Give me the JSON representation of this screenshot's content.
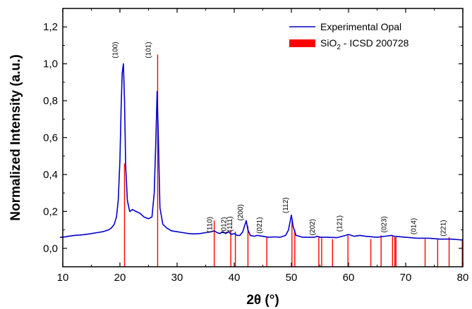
{
  "chart_data": {
    "type": "line",
    "xlabel": "2θ (°)",
    "ylabel": "Normalized Intensity (a.u.)",
    "xlim": [
      10,
      80
    ],
    "ylim": [
      -0.1,
      1.3
    ],
    "x_ticks": [
      10,
      20,
      30,
      40,
      50,
      60,
      70,
      80
    ],
    "y_ticks": [
      0.0,
      0.2,
      0.4,
      0.6,
      0.8,
      1.0,
      1.2
    ],
    "y_tick_labels": [
      "0,0",
      "0,2",
      "0,4",
      "0,6",
      "0,8",
      "1,0",
      "1,2"
    ],
    "grid": false,
    "legend_position": "top-right",
    "legend": [
      {
        "label": "Experimental Opal",
        "style": "line",
        "color": "#0000cc"
      },
      {
        "label_main": "SiO",
        "label_sub": "2",
        "label_rest": " - ICSD 200728",
        "style": "box",
        "color": "#ff0000"
      }
    ],
    "series": [
      {
        "name": "Experimental Opal",
        "color": "#0000cc",
        "x": [
          9.5,
          10,
          11,
          12,
          13,
          14,
          15,
          16,
          17,
          18,
          18.5,
          19,
          19.4,
          19.7,
          20.0,
          20.2,
          20.4,
          20.6,
          20.8,
          21.0,
          21.3,
          21.7,
          22.2,
          22.8,
          23.5,
          24.2,
          25.0,
          25.6,
          26.0,
          26.3,
          26.5,
          26.7,
          27.0,
          27.5,
          28.2,
          29,
          30,
          31,
          32,
          33,
          34,
          35,
          36,
          36.5,
          37,
          37.5,
          38,
          38.5,
          39,
          39.5,
          40,
          40.5,
          41,
          41.5,
          41.8,
          42.1,
          42.4,
          42.8,
          43.5,
          44,
          45,
          46,
          47,
          48,
          49,
          49.5,
          49.8,
          50.0,
          50.3,
          50.8,
          52,
          54,
          54.6,
          55,
          56,
          58,
          59.5,
          60,
          61,
          62,
          63,
          65,
          67,
          67.5,
          68,
          70,
          72,
          74,
          76,
          78,
          80
        ],
        "y": [
          0.06,
          0.06,
          0.065,
          0.07,
          0.072,
          0.075,
          0.08,
          0.085,
          0.09,
          0.1,
          0.11,
          0.13,
          0.17,
          0.26,
          0.48,
          0.75,
          0.95,
          1.0,
          0.8,
          0.45,
          0.26,
          0.2,
          0.21,
          0.2,
          0.19,
          0.17,
          0.16,
          0.17,
          0.3,
          0.6,
          0.85,
          0.62,
          0.22,
          0.13,
          0.11,
          0.095,
          0.09,
          0.085,
          0.08,
          0.078,
          0.08,
          0.085,
          0.09,
          0.095,
          0.085,
          0.08,
          0.09,
          0.08,
          0.09,
          0.075,
          0.08,
          0.07,
          0.07,
          0.09,
          0.12,
          0.15,
          0.1,
          0.07,
          0.065,
          0.07,
          0.065,
          0.06,
          0.062,
          0.06,
          0.07,
          0.1,
          0.15,
          0.18,
          0.12,
          0.07,
          0.06,
          0.06,
          0.065,
          0.06,
          0.06,
          0.058,
          0.07,
          0.075,
          0.065,
          0.07,
          0.065,
          0.06,
          0.068,
          0.07,
          0.065,
          0.06,
          0.055,
          0.055,
          0.05,
          0.05,
          0.045
        ]
      }
    ],
    "reference_lines": {
      "name": "SiO2 - ICSD 200728",
      "color": "#ff0000",
      "x": [
        20.8,
        26.6,
        36.5,
        39.4,
        40.2,
        42.4,
        45.7,
        50.1,
        50.6,
        54.8,
        55.3,
        57.2,
        59.9,
        63.9,
        65.7,
        67.7,
        68.1,
        68.3,
        73.4,
        75.6,
        77.6,
        79.9
      ],
      "y": [
        0.46,
        1.05,
        0.15,
        0.1,
        0.09,
        0.12,
        0.06,
        0.15,
        0.1,
        0.06,
        0.06,
        0.05,
        0.07,
        0.05,
        0.07,
        0.07,
        0.06,
        0.06,
        0.05,
        0.05,
        0.06,
        0.05
      ]
    },
    "annotations": [
      {
        "text": "(100)",
        "x": 19.6,
        "y": 1.03
      },
      {
        "text": "(101)",
        "x": 25.4,
        "y": 1.03
      },
      {
        "text": "(110)",
        "x": 36.1,
        "y": 0.085
      },
      {
        "text": "(012)",
        "x": 38.6,
        "y": 0.08
      },
      {
        "text": "(111)",
        "x": 39.6,
        "y": 0.09
      },
      {
        "text": "(200)",
        "x": 41.5,
        "y": 0.15
      },
      {
        "text": "(021)",
        "x": 44.8,
        "y": 0.08
      },
      {
        "text": "(112)",
        "x": 49.4,
        "y": 0.19
      },
      {
        "text": "(202)",
        "x": 54.1,
        "y": 0.07
      },
      {
        "text": "(121)",
        "x": 58.8,
        "y": 0.09
      },
      {
        "text": "(023)",
        "x": 66.6,
        "y": 0.085
      },
      {
        "text": "(014)",
        "x": 71.8,
        "y": 0.075
      },
      {
        "text": "(221)",
        "x": 77.0,
        "y": 0.065
      }
    ]
  }
}
